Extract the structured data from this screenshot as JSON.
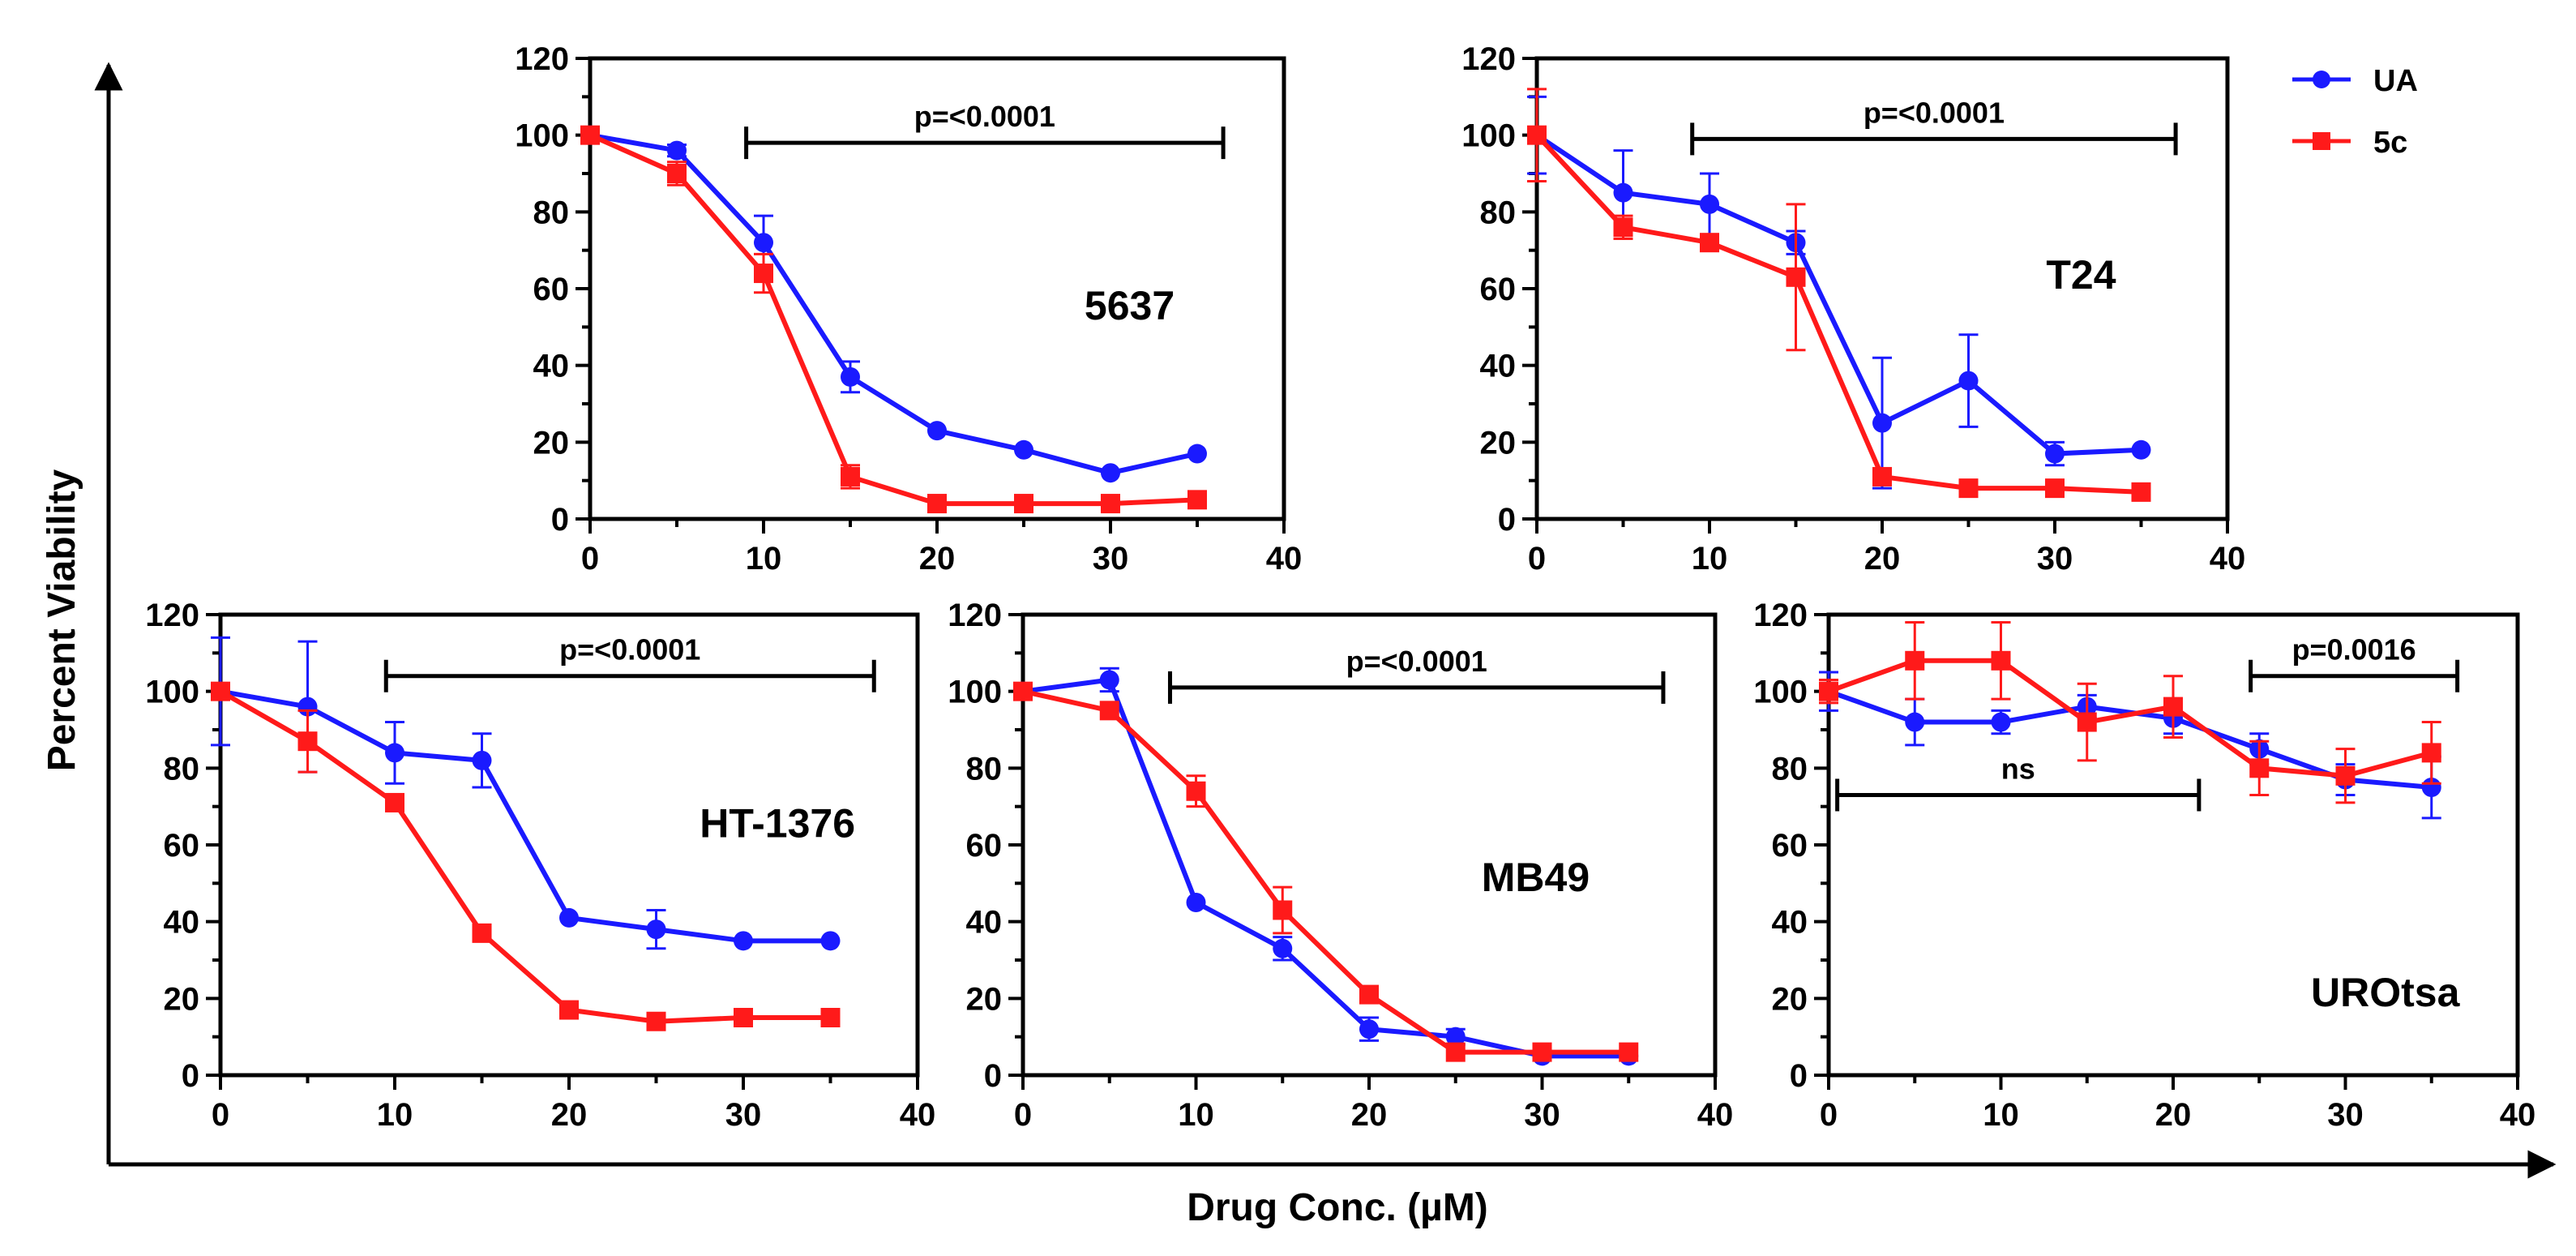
{
  "figure": {
    "y_axis_label": "Percent Viability",
    "x_axis_label": "Drug Conc. (µM)"
  },
  "legend": [
    {
      "name": "UA",
      "color": "#1a1aff",
      "marker": "circle"
    },
    {
      "name": "5c",
      "color": "#ff1a1a",
      "marker": "square"
    }
  ],
  "chart_data": [
    {
      "type": "line",
      "cell_line": "5637",
      "x": [
        0,
        5,
        10,
        15,
        20,
        25,
        30,
        35
      ],
      "xlim": [
        0,
        40
      ],
      "ylim": [
        0,
        120
      ],
      "xticks": [
        0,
        10,
        20,
        30,
        40
      ],
      "yticks": [
        0,
        20,
        40,
        60,
        80,
        100,
        120
      ],
      "series": [
        {
          "name": "UA",
          "values": [
            100,
            96,
            72,
            37,
            23,
            18,
            12,
            17
          ],
          "errors": [
            1,
            1.5,
            7,
            4,
            1,
            1,
            1,
            1
          ]
        },
        {
          "name": "5c",
          "values": [
            100,
            90,
            64,
            11,
            4,
            4,
            4,
            5
          ],
          "errors": [
            1,
            3,
            5,
            3,
            1,
            1,
            1,
            1
          ]
        }
      ],
      "annotations": [
        {
          "text": "p=<0.0001",
          "x1": 9,
          "x2": 36.5
        }
      ]
    },
    {
      "type": "line",
      "cell_line": "T24",
      "x": [
        0,
        5,
        10,
        15,
        20,
        25,
        30,
        35
      ],
      "xlim": [
        0,
        40
      ],
      "ylim": [
        0,
        120
      ],
      "xticks": [
        0,
        10,
        20,
        30,
        40
      ],
      "yticks": [
        0,
        20,
        40,
        60,
        80,
        100,
        120
      ],
      "series": [
        {
          "name": "UA",
          "values": [
            100,
            85,
            82,
            72,
            25,
            36,
            17,
            18
          ],
          "errors": [
            10,
            11,
            8,
            3,
            17,
            12,
            3,
            1
          ]
        },
        {
          "name": "5c",
          "values": [
            100,
            76,
            72,
            63,
            11,
            8,
            8,
            7
          ],
          "errors": [
            12,
            3,
            2,
            19,
            2,
            1,
            1,
            1
          ]
        }
      ],
      "annotations": [
        {
          "text": "p=<0.0001",
          "x1": 9,
          "x2": 37
        }
      ]
    },
    {
      "type": "line",
      "cell_line": "HT-1376",
      "x": [
        0,
        5,
        10,
        15,
        20,
        25,
        30,
        35
      ],
      "xlim": [
        0,
        40
      ],
      "ylim": [
        0,
        120
      ],
      "xticks": [
        0,
        10,
        20,
        30,
        40
      ],
      "yticks": [
        0,
        20,
        40,
        60,
        80,
        100,
        120
      ],
      "series": [
        {
          "name": "UA",
          "values": [
            100,
            96,
            84,
            82,
            41,
            38,
            35,
            35
          ],
          "errors": [
            14,
            17,
            8,
            7,
            1,
            5,
            1,
            1
          ]
        },
        {
          "name": "5c",
          "values": [
            100,
            87,
            71,
            37,
            17,
            14,
            15,
            15
          ],
          "errors": [
            1,
            8,
            1,
            1,
            1,
            1,
            1,
            1
          ]
        }
      ],
      "annotations": [
        {
          "text": "p=<0.0001",
          "x1": 9.5,
          "x2": 37.5
        }
      ]
    },
    {
      "type": "line",
      "cell_line": "MB49",
      "x": [
        0,
        5,
        10,
        15,
        20,
        25,
        30,
        35
      ],
      "xlim": [
        0,
        40
      ],
      "ylim": [
        0,
        120
      ],
      "xticks": [
        0,
        10,
        20,
        30,
        40
      ],
      "yticks": [
        0,
        20,
        40,
        60,
        80,
        100,
        120
      ],
      "series": [
        {
          "name": "UA",
          "values": [
            100,
            103,
            45,
            33,
            12,
            10,
            5,
            5
          ],
          "errors": [
            1,
            3,
            1,
            3,
            3,
            2,
            1,
            1
          ]
        },
        {
          "name": "5c",
          "values": [
            100,
            95,
            74,
            43,
            21,
            6,
            6,
            6
          ],
          "errors": [
            1,
            1,
            4,
            6,
            1,
            1,
            1,
            1
          ]
        }
      ],
      "annotations": [
        {
          "text": "p=<0.0001",
          "x1": 8.5,
          "x2": 37
        }
      ]
    },
    {
      "type": "line",
      "cell_line": "UROtsa",
      "x": [
        0,
        5,
        10,
        15,
        20,
        25,
        30,
        35
      ],
      "xlim": [
        0,
        40
      ],
      "ylim": [
        0,
        120
      ],
      "xticks": [
        0,
        10,
        20,
        30,
        40
      ],
      "yticks": [
        0,
        20,
        40,
        60,
        80,
        100,
        120
      ],
      "series": [
        {
          "name": "UA",
          "values": [
            100,
            92,
            92,
            96,
            93,
            85,
            77,
            75
          ],
          "errors": [
            5,
            6,
            3,
            3,
            4,
            4,
            4,
            8
          ]
        },
        {
          "name": "5c",
          "values": [
            100,
            108,
            108,
            92,
            96,
            80,
            78,
            84
          ],
          "errors": [
            3,
            10,
            10,
            10,
            8,
            7,
            7,
            8
          ]
        }
      ],
      "annotations": [
        {
          "text": "ns",
          "x1": 0.5,
          "x2": 21.5,
          "label_position": "above"
        },
        {
          "text": "p=0.0016",
          "x1": 24.5,
          "x2": 36.5,
          "label_position": "above"
        }
      ]
    }
  ]
}
